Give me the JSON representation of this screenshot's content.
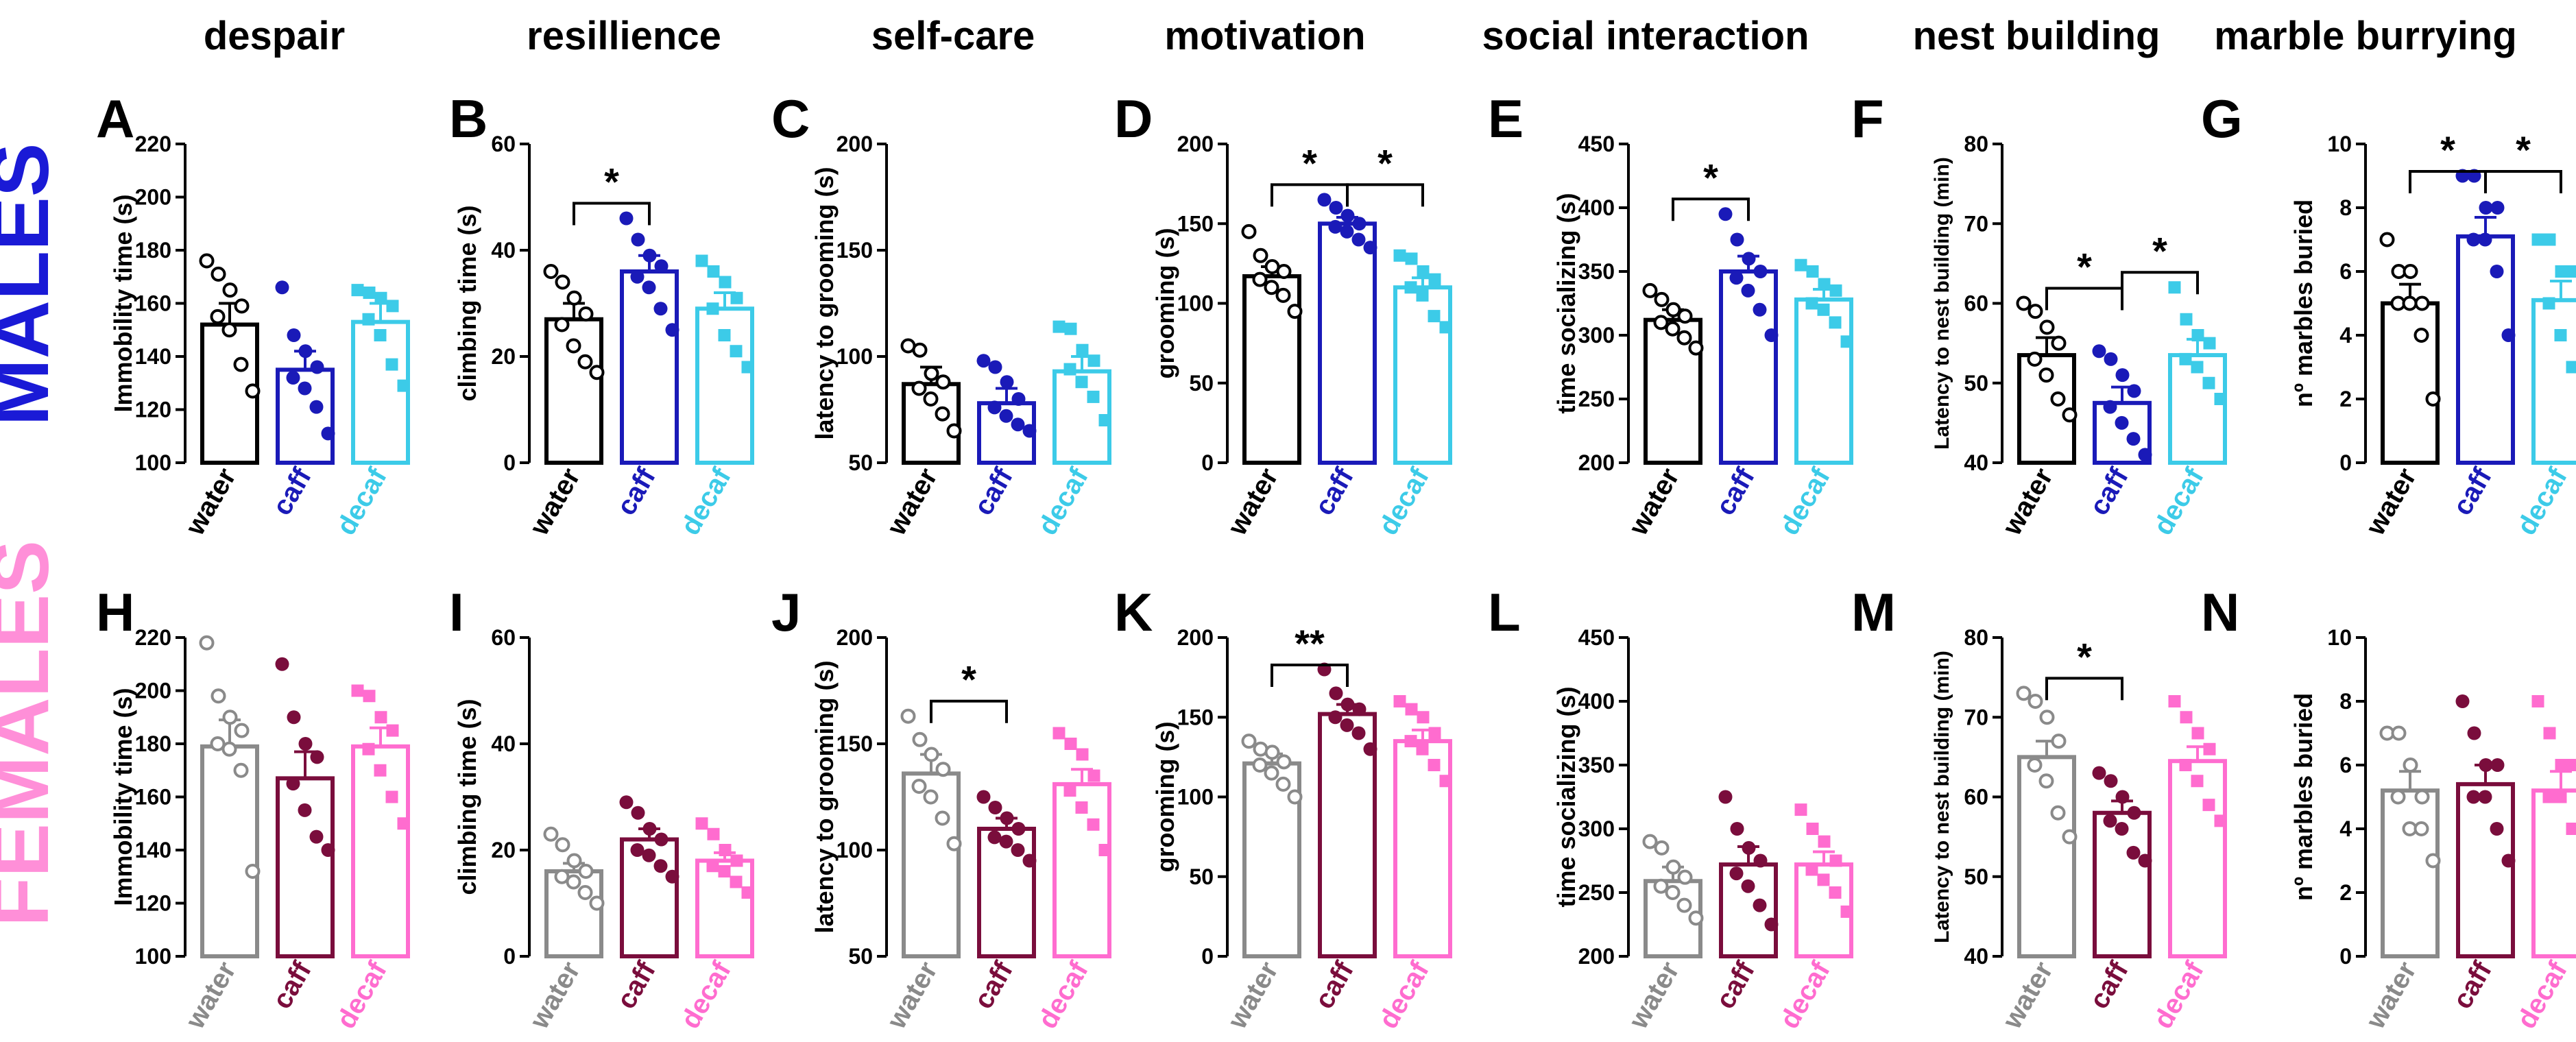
{
  "figure": {
    "column_titles": [
      "despair",
      "resillience",
      "self-care",
      "motivation",
      "social interaction",
      "nest building",
      "marble burrying"
    ],
    "row_labels": [
      "MALES",
      "FEMALES"
    ],
    "row_colors": [
      "#1a1ad6",
      "#ff8fd8"
    ],
    "group_names": [
      "water",
      "caff",
      "decaf"
    ],
    "male_colors": [
      "#000000",
      "#1a1ab8",
      "#3ccbe8"
    ],
    "female_colors": [
      "#8a8a8a",
      "#7a0d3c",
      "#ff6ccf"
    ]
  },
  "chart_data": [
    {
      "panel": "A",
      "type": "bar",
      "sex": "male",
      "ylabel": "Immobility time (s)",
      "ylim": [
        100,
        220
      ],
      "yticks": [
        100,
        120,
        140,
        160,
        180,
        200,
        220
      ],
      "categories": [
        "water",
        "caff",
        "decaf"
      ],
      "values": [
        152,
        135,
        153
      ],
      "sem": [
        8,
        7,
        7
      ],
      "points": [
        [
          176,
          171,
          165,
          159,
          155,
          150,
          137,
          127
        ],
        [
          166,
          148,
          142,
          136,
          132,
          128,
          121,
          111
        ],
        [
          165,
          164,
          162,
          159,
          154,
          148,
          137,
          129
        ]
      ],
      "significance": []
    },
    {
      "panel": "B",
      "type": "bar",
      "sex": "male",
      "ylabel": "climbing time (s)",
      "ylim": [
        0,
        60
      ],
      "yticks": [
        0,
        20,
        40,
        60
      ],
      "categories": [
        "water",
        "caff",
        "decaf"
      ],
      "values": [
        27,
        36,
        29
      ],
      "sem": [
        3,
        3,
        3
      ],
      "points": [
        [
          36,
          34,
          31,
          28,
          26,
          22,
          19,
          17
        ],
        [
          46,
          42,
          39,
          37,
          35,
          33,
          29,
          25
        ],
        [
          38,
          36,
          34,
          31,
          29,
          24,
          21,
          18
        ]
      ],
      "significance": [
        {
          "from": 0,
          "to": 1,
          "label": "*"
        }
      ]
    },
    {
      "panel": "C",
      "type": "bar",
      "sex": "male",
      "ylabel": "latency to grooming (s)",
      "ylim": [
        50,
        200
      ],
      "yticks": [
        50,
        100,
        150,
        200
      ],
      "categories": [
        "water",
        "caff",
        "decaf"
      ],
      "values": [
        87,
        78,
        93
      ],
      "sem": [
        8,
        7,
        7
      ],
      "points": [
        [
          105,
          103,
          92,
          88,
          85,
          80,
          73,
          65
        ],
        [
          98,
          95,
          88,
          80,
          76,
          72,
          68,
          65
        ],
        [
          114,
          113,
          103,
          98,
          94,
          88,
          81,
          70
        ]
      ],
      "significance": []
    },
    {
      "panel": "D",
      "type": "bar",
      "sex": "male",
      "ylabel": "grooming (s)",
      "ylim": [
        0,
        200
      ],
      "yticks": [
        0,
        50,
        100,
        150,
        200
      ],
      "categories": [
        "water",
        "caff",
        "decaf"
      ],
      "values": [
        117,
        150,
        110
      ],
      "sem": [
        6,
        4,
        6
      ],
      "points": [
        [
          145,
          130,
          123,
          120,
          115,
          110,
          105,
          95
        ],
        [
          165,
          160,
          155,
          150,
          148,
          145,
          140,
          135
        ],
        [
          130,
          128,
          120,
          115,
          110,
          105,
          92,
          85
        ]
      ],
      "significance": [
        {
          "from": 0,
          "to": 1,
          "label": "*"
        },
        {
          "from": 1,
          "to": 2,
          "label": "*"
        }
      ]
    },
    {
      "panel": "E",
      "type": "bar",
      "sex": "male",
      "ylabel": "time socializing (s)",
      "ylim": [
        200,
        450
      ],
      "yticks": [
        200,
        250,
        300,
        350,
        400,
        450
      ],
      "categories": [
        "water",
        "caff",
        "decaf"
      ],
      "values": [
        312,
        350,
        328
      ],
      "sem": [
        8,
        12,
        8
      ],
      "points": [
        [
          335,
          328,
          320,
          315,
          310,
          305,
          298,
          290
        ],
        [
          395,
          375,
          360,
          350,
          345,
          335,
          320,
          300
        ],
        [
          355,
          350,
          340,
          335,
          325,
          320,
          310,
          295
        ]
      ],
      "significance": [
        {
          "from": 0,
          "to": 1,
          "label": "*"
        }
      ]
    },
    {
      "panel": "F",
      "type": "bar",
      "sex": "male",
      "ylabel": "Latency to nest building (min)",
      "ylim": [
        40,
        80
      ],
      "yticks": [
        40,
        50,
        60,
        70,
        80
      ],
      "categories": [
        "water",
        "caff",
        "decaf"
      ],
      "values": [
        53.5,
        47.5,
        53.5
      ],
      "sem": [
        2.2,
        2,
        2
      ],
      "points": [
        [
          60,
          59,
          57,
          55,
          53,
          51,
          48,
          46
        ],
        [
          54,
          53,
          51,
          49,
          47,
          45,
          43,
          41
        ],
        [
          62,
          58,
          56,
          55,
          53,
          52,
          50,
          48
        ]
      ],
      "significance": [
        {
          "from": 0,
          "to": 1,
          "label": "*"
        },
        {
          "from": 1,
          "to": 2,
          "label": "*"
        }
      ]
    },
    {
      "panel": "G",
      "type": "bar",
      "sex": "male",
      "ylabel": "nº marbles buried",
      "ylim": [
        0,
        10
      ],
      "yticks": [
        0,
        2,
        4,
        6,
        8,
        10
      ],
      "categories": [
        "water",
        "caff",
        "decaf"
      ],
      "values": [
        5,
        7.1,
        5.1
      ],
      "sem": [
        0.6,
        0.6,
        0.6
      ],
      "points": [
        [
          7,
          6,
          6,
          5,
          5,
          5,
          4,
          2
        ],
        [
          9,
          9,
          8,
          8,
          7,
          7,
          6,
          4
        ],
        [
          7,
          7,
          6,
          6,
          5,
          4,
          3,
          3
        ]
      ],
      "significance": [
        {
          "from": 0,
          "to": 1,
          "label": "*"
        },
        {
          "from": 1,
          "to": 2,
          "label": "*"
        }
      ]
    },
    {
      "panel": "H",
      "type": "bar",
      "sex": "female",
      "ylabel": "Immobility time (s)",
      "ylim": [
        100,
        220
      ],
      "yticks": [
        100,
        120,
        140,
        160,
        180,
        200,
        220
      ],
      "categories": [
        "water",
        "caff",
        "decaf"
      ],
      "values": [
        179,
        167,
        179
      ],
      "sem": [
        10,
        10,
        7
      ],
      "points": [
        [
          218,
          198,
          190,
          185,
          180,
          178,
          170,
          132
        ],
        [
          210,
          190,
          180,
          175,
          165,
          155,
          145,
          140
        ],
        [
          200,
          198,
          190,
          185,
          178,
          170,
          160,
          150
        ]
      ],
      "significance": []
    },
    {
      "panel": "I",
      "type": "bar",
      "sex": "female",
      "ylabel": "climbing time (s)",
      "ylim": [
        0,
        60
      ],
      "yticks": [
        0,
        20,
        40,
        60
      ],
      "categories": [
        "water",
        "caff",
        "decaf"
      ],
      "values": [
        16,
        22,
        18
      ],
      "sem": [
        1.5,
        2,
        1.5
      ],
      "points": [
        [
          23,
          21,
          18,
          16,
          15,
          14,
          12,
          10
        ],
        [
          29,
          27,
          24,
          22,
          20,
          19,
          17,
          15
        ],
        [
          25,
          23,
          20,
          18,
          17,
          16,
          14,
          12
        ]
      ],
      "significance": []
    },
    {
      "panel": "J",
      "type": "bar",
      "sex": "female",
      "ylabel": "latency to grooming (s)",
      "ylim": [
        50,
        200
      ],
      "yticks": [
        50,
        100,
        150,
        200
      ],
      "categories": [
        "water",
        "caff",
        "decaf"
      ],
      "values": [
        136,
        110,
        131
      ],
      "sem": [
        9,
        5,
        7
      ],
      "points": [
        [
          163,
          152,
          145,
          138,
          130,
          125,
          115,
          103
        ],
        [
          125,
          120,
          115,
          110,
          106,
          104,
          100,
          95
        ],
        [
          155,
          150,
          145,
          135,
          128,
          120,
          112,
          100
        ]
      ],
      "significance": [
        {
          "from": 0,
          "to": 1,
          "label": "*"
        }
      ]
    },
    {
      "panel": "K",
      "type": "bar",
      "sex": "female",
      "ylabel": "grooming (s)",
      "ylim": [
        0,
        200
      ],
      "yticks": [
        0,
        50,
        100,
        150,
        200
      ],
      "categories": [
        "water",
        "caff",
        "decaf"
      ],
      "values": [
        121,
        152,
        135
      ],
      "sem": [
        6,
        6,
        7
      ],
      "points": [
        [
          135,
          130,
          128,
          122,
          120,
          115,
          108,
          100
        ],
        [
          180,
          165,
          158,
          155,
          150,
          145,
          140,
          130
        ],
        [
          160,
          155,
          150,
          140,
          135,
          130,
          120,
          110
        ]
      ],
      "significance": [
        {
          "from": 0,
          "to": 1,
          "label": "**"
        }
      ]
    },
    {
      "panel": "L",
      "type": "bar",
      "sex": "female",
      "ylabel": "time socializing (s)",
      "ylim": [
        200,
        450
      ],
      "yticks": [
        200,
        250,
        300,
        350,
        400,
        450
      ],
      "categories": [
        "water",
        "caff",
        "decaf"
      ],
      "values": [
        259,
        272,
        272
      ],
      "sem": [
        11,
        14,
        10
      ],
      "points": [
        [
          290,
          285,
          270,
          262,
          255,
          250,
          240,
          230
        ],
        [
          325,
          300,
          285,
          275,
          265,
          255,
          240,
          225
        ],
        [
          315,
          300,
          290,
          275,
          268,
          260,
          250,
          235
        ]
      ],
      "significance": []
    },
    {
      "panel": "M",
      "type": "bar",
      "sex": "female",
      "ylabel": "Latency to nest building (min)",
      "ylim": [
        40,
        80
      ],
      "yticks": [
        40,
        50,
        60,
        70,
        80
      ],
      "categories": [
        "water",
        "caff",
        "decaf"
      ],
      "values": [
        65,
        58,
        64.5
      ],
      "sem": [
        2,
        1.5,
        1.8
      ],
      "points": [
        [
          73,
          72,
          70,
          67,
          64,
          62,
          58,
          55
        ],
        [
          63,
          62,
          60,
          58,
          57,
          56,
          53,
          52
        ],
        [
          72,
          70,
          68,
          66,
          64,
          62,
          59,
          57
        ]
      ],
      "significance": [
        {
          "from": 0,
          "to": 1,
          "label": "*"
        }
      ]
    },
    {
      "panel": "N",
      "type": "bar",
      "sex": "female",
      "ylabel": "nº marbles buried",
      "ylim": [
        0,
        10
      ],
      "yticks": [
        0,
        2,
        4,
        6,
        8,
        10
      ],
      "categories": [
        "water",
        "caff",
        "decaf"
      ],
      "values": [
        5.2,
        5.4,
        5.2
      ],
      "sem": [
        0.6,
        0.6,
        0.6
      ],
      "points": [
        [
          7,
          7,
          6,
          5,
          5,
          4,
          4,
          3
        ],
        [
          8,
          7,
          6,
          6,
          5,
          5,
          4,
          3
        ],
        [
          8,
          7,
          6,
          6,
          5,
          5,
          4,
          3
        ]
      ],
      "significance": []
    }
  ]
}
